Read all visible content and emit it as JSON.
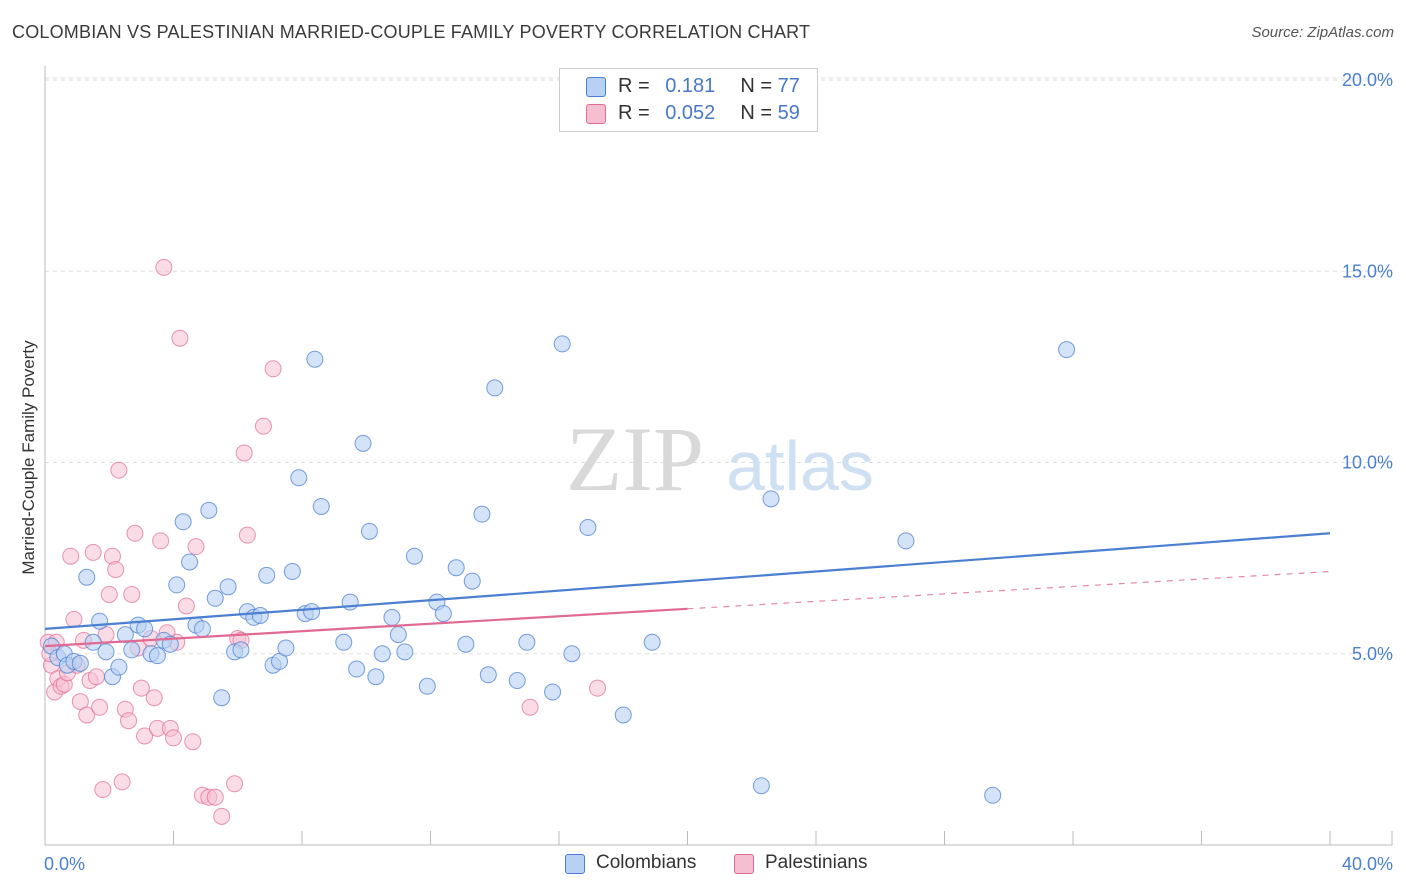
{
  "title": "COLOMBIAN VS PALESTINIAN MARRIED-COUPLE FAMILY POVERTY CORRELATION CHART",
  "source": "Source: ZipAtlas.com",
  "watermark": {
    "zip": "ZIP",
    "atlas": "atlas"
  },
  "legend": {
    "r_label": "R =",
    "n_label": "N =",
    "colombians": {
      "r": "0.181",
      "n": "77"
    },
    "palestinians": {
      "r": "0.052",
      "n": "59"
    }
  },
  "bottom_legend": {
    "colombians": "Colombians",
    "palestinians": "Palestinians"
  },
  "colors": {
    "blue": "#4a7fd1",
    "blue_fill": "#b8d0f2",
    "pink": "#e06a93",
    "pink_fill": "#f6bfd1",
    "axis_text": "#4a7fd1",
    "grid": "#dddddd"
  },
  "chart_data": {
    "type": "scatter",
    "title": "COLOMBIAN VS PALESTINIAN MARRIED-COUPLE FAMILY POVERTY CORRELATION CHART",
    "xlabel": "",
    "ylabel": "Married-Couple Family Poverty",
    "xlim": [
      0,
      40
    ],
    "ylim": [
      0,
      20
    ],
    "x_tick_labels": [
      "0.0%",
      "40.0%"
    ],
    "y_ticks": [
      5,
      10,
      15,
      20
    ],
    "y_tick_labels": [
      "5.0%",
      "10.0%",
      "15.0%",
      "20.0%"
    ],
    "grid": true,
    "series": [
      {
        "name": "Colombians",
        "r": 0.181,
        "n": 77,
        "trend": {
          "x": [
            0,
            40
          ],
          "y": [
            5.65,
            8.15
          ],
          "dashed_after": null
        },
        "points": [
          [
            0.2,
            5.2
          ],
          [
            0.4,
            4.9
          ],
          [
            0.6,
            5.0
          ],
          [
            0.7,
            4.7
          ],
          [
            0.9,
            4.8
          ],
          [
            1.1,
            4.75
          ],
          [
            1.3,
            7.0
          ],
          [
            1.5,
            5.3
          ],
          [
            1.7,
            5.85
          ],
          [
            1.9,
            5.05
          ],
          [
            2.1,
            4.4
          ],
          [
            2.3,
            4.65
          ],
          [
            2.5,
            5.5
          ],
          [
            2.7,
            5.1
          ],
          [
            2.9,
            5.75
          ],
          [
            3.1,
            5.65
          ],
          [
            3.3,
            5.0
          ],
          [
            3.5,
            4.95
          ],
          [
            3.7,
            5.35
          ],
          [
            3.9,
            5.25
          ],
          [
            4.1,
            6.8
          ],
          [
            4.3,
            8.45
          ],
          [
            4.5,
            7.4
          ],
          [
            4.7,
            5.75
          ],
          [
            4.9,
            5.65
          ],
          [
            5.1,
            8.75
          ],
          [
            5.3,
            6.45
          ],
          [
            5.5,
            3.85
          ],
          [
            5.7,
            6.75
          ],
          [
            5.9,
            5.05
          ],
          [
            6.1,
            5.1
          ],
          [
            6.3,
            6.1
          ],
          [
            6.5,
            5.95
          ],
          [
            6.7,
            6.0
          ],
          [
            6.9,
            7.05
          ],
          [
            7.1,
            4.7
          ],
          [
            7.3,
            4.8
          ],
          [
            7.5,
            5.15
          ],
          [
            7.7,
            7.15
          ],
          [
            7.9,
            9.6
          ],
          [
            8.1,
            6.05
          ],
          [
            8.3,
            6.1
          ],
          [
            8.4,
            12.7
          ],
          [
            8.6,
            8.85
          ],
          [
            9.3,
            5.3
          ],
          [
            9.5,
            6.35
          ],
          [
            9.7,
            4.6
          ],
          [
            9.9,
            10.5
          ],
          [
            10.1,
            8.2
          ],
          [
            10.3,
            4.4
          ],
          [
            10.5,
            5.0
          ],
          [
            10.8,
            5.95
          ],
          [
            11.0,
            5.5
          ],
          [
            11.2,
            5.05
          ],
          [
            11.5,
            7.55
          ],
          [
            11.9,
            4.15
          ],
          [
            12.2,
            6.35
          ],
          [
            12.4,
            6.05
          ],
          [
            12.8,
            7.25
          ],
          [
            13.1,
            5.25
          ],
          [
            13.3,
            6.9
          ],
          [
            13.6,
            8.65
          ],
          [
            13.8,
            4.45
          ],
          [
            14.0,
            11.95
          ],
          [
            14.7,
            4.3
          ],
          [
            15.0,
            5.3
          ],
          [
            15.8,
            4.0
          ],
          [
            16.1,
            13.1
          ],
          [
            16.4,
            5.0
          ],
          [
            16.9,
            8.3
          ],
          [
            18.0,
            3.4
          ],
          [
            18.9,
            5.3
          ],
          [
            22.6,
            9.05
          ],
          [
            22.3,
            1.55
          ],
          [
            26.8,
            7.95
          ],
          [
            29.5,
            1.3
          ],
          [
            31.8,
            12.95
          ]
        ]
      },
      {
        "name": "Palestinians",
        "r": 0.052,
        "n": 59,
        "trend": {
          "x": [
            0,
            40
          ],
          "y": [
            5.2,
            7.15
          ],
          "dashed_after": 20
        },
        "points": [
          [
            0.1,
            5.3
          ],
          [
            0.2,
            4.7
          ],
          [
            0.3,
            4.0
          ],
          [
            0.4,
            4.35
          ],
          [
            0.5,
            4.15
          ],
          [
            0.6,
            4.2
          ],
          [
            0.7,
            4.5
          ],
          [
            0.8,
            7.55
          ],
          [
            0.9,
            5.9
          ],
          [
            1.0,
            4.7
          ],
          [
            1.1,
            3.75
          ],
          [
            1.2,
            5.35
          ],
          [
            1.3,
            3.4
          ],
          [
            1.4,
            4.3
          ],
          [
            1.5,
            7.65
          ],
          [
            1.6,
            4.4
          ],
          [
            1.7,
            3.6
          ],
          [
            1.8,
            1.45
          ],
          [
            1.9,
            5.5
          ],
          [
            2.0,
            6.55
          ],
          [
            2.1,
            7.55
          ],
          [
            2.2,
            7.2
          ],
          [
            2.3,
            9.8
          ],
          [
            2.4,
            1.65
          ],
          [
            2.5,
            3.55
          ],
          [
            2.6,
            3.25
          ],
          [
            2.7,
            6.55
          ],
          [
            2.8,
            8.15
          ],
          [
            2.9,
            5.15
          ],
          [
            3.0,
            4.1
          ],
          [
            3.1,
            2.85
          ],
          [
            3.3,
            5.4
          ],
          [
            3.4,
            3.85
          ],
          [
            3.5,
            3.05
          ],
          [
            3.6,
            7.95
          ],
          [
            3.7,
            15.1
          ],
          [
            3.8,
            5.55
          ],
          [
            3.9,
            3.05
          ],
          [
            4.0,
            2.8
          ],
          [
            4.1,
            5.3
          ],
          [
            4.2,
            13.25
          ],
          [
            4.4,
            6.25
          ],
          [
            4.6,
            2.7
          ],
          [
            4.7,
            7.8
          ],
          [
            4.9,
            1.3
          ],
          [
            5.1,
            1.25
          ],
          [
            5.3,
            1.25
          ],
          [
            5.5,
            0.75
          ],
          [
            5.9,
            1.6
          ],
          [
            6.0,
            5.4
          ],
          [
            6.1,
            5.35
          ],
          [
            6.2,
            10.25
          ],
          [
            6.3,
            8.1
          ],
          [
            6.8,
            10.95
          ],
          [
            7.1,
            12.45
          ],
          [
            15.1,
            3.6
          ],
          [
            17.2,
            4.1
          ],
          [
            0.35,
            5.3
          ],
          [
            0.15,
            5.0
          ]
        ]
      }
    ]
  }
}
